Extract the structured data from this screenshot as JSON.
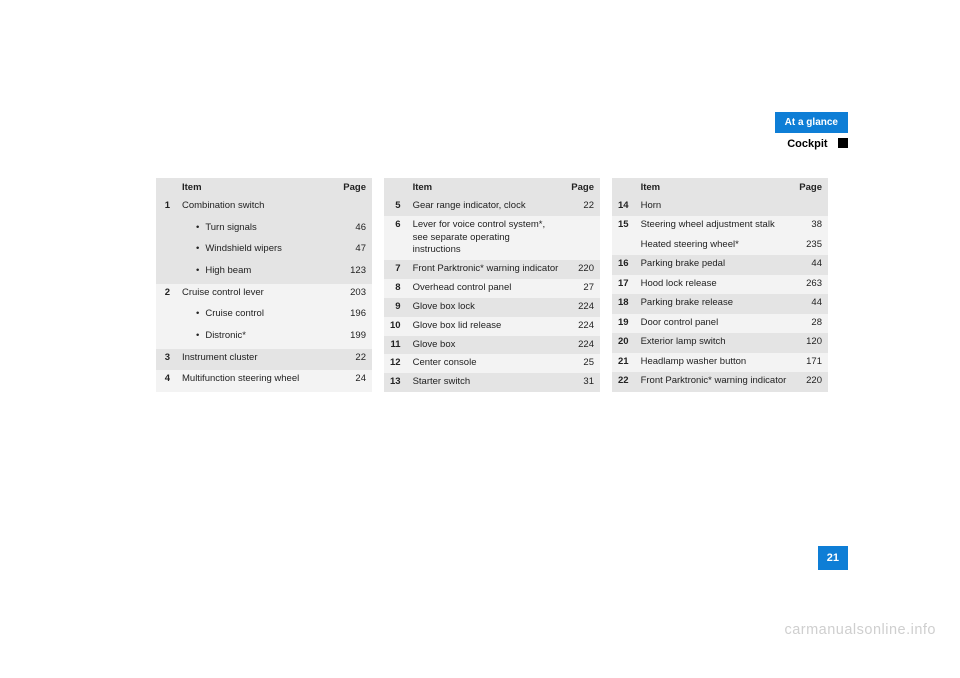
{
  "header": {
    "tab": "At a glance",
    "section": "Cockpit"
  },
  "page_number": "21",
  "watermark": "carmanualsonline.info",
  "columns": [
    {
      "item_h": "Item",
      "page_h": "Page"
    },
    {
      "item_h": "Item",
      "page_h": "Page"
    },
    {
      "item_h": "Item",
      "page_h": "Page"
    }
  ],
  "t1": [
    {
      "num": "1",
      "item": "Combination switch",
      "page": "",
      "stripe": "a",
      "bullet": false
    },
    {
      "num": "",
      "item": "Turn signals",
      "page": "46",
      "stripe": "a",
      "bullet": true
    },
    {
      "num": "",
      "item": "Windshield wipers",
      "page": "47",
      "stripe": "a",
      "bullet": true
    },
    {
      "num": "",
      "item": "High beam",
      "page": "123",
      "stripe": "a",
      "bullet": true
    },
    {
      "num": "2",
      "item": "Cruise control lever",
      "page": "203",
      "stripe": "b",
      "bullet": false
    },
    {
      "num": "",
      "item": "Cruise control",
      "page": "196",
      "stripe": "b",
      "bullet": true
    },
    {
      "num": "",
      "item": "Distronic*",
      "page": "199",
      "stripe": "b",
      "bullet": true
    },
    {
      "num": "3",
      "item": "Instrument cluster",
      "page": "22",
      "stripe": "a",
      "bullet": false
    },
    {
      "num": "4",
      "item": "Multifunction steering wheel",
      "page": "24",
      "stripe": "b",
      "bullet": false
    }
  ],
  "t2": [
    {
      "num": "5",
      "item": "Gear range indicator, clock",
      "page": "22",
      "stripe": "a",
      "bullet": false
    },
    {
      "num": "6",
      "item": "Lever for voice control system*, see separate operating instructions",
      "page": "",
      "stripe": "b",
      "bullet": false
    },
    {
      "num": "7",
      "item": "Front Parktronic* warning indicator",
      "page": "220",
      "stripe": "a",
      "bullet": false
    },
    {
      "num": "8",
      "item": "Overhead control panel",
      "page": "27",
      "stripe": "b",
      "bullet": false
    },
    {
      "num": "9",
      "item": "Glove box lock",
      "page": "224",
      "stripe": "a",
      "bullet": false
    },
    {
      "num": "10",
      "item": "Glove box lid release",
      "page": "224",
      "stripe": "b",
      "bullet": false
    },
    {
      "num": "11",
      "item": "Glove box",
      "page": "224",
      "stripe": "a",
      "bullet": false
    },
    {
      "num": "12",
      "item": "Center console",
      "page": "25",
      "stripe": "b",
      "bullet": false
    },
    {
      "num": "13",
      "item": "Starter switch",
      "page": "31",
      "stripe": "a",
      "bullet": false
    }
  ],
  "t3": [
    {
      "num": "14",
      "item": "Horn",
      "page": "",
      "stripe": "a",
      "bullet": false
    },
    {
      "num": "15",
      "item": "Steering wheel adjustment stalk",
      "page": "38",
      "stripe": "b",
      "bullet": false
    },
    {
      "num": "",
      "item": "Heated steering wheel*",
      "page": "235",
      "stripe": "b",
      "bullet": false
    },
    {
      "num": "16",
      "item": "Parking brake pedal",
      "page": "44",
      "stripe": "a",
      "bullet": false
    },
    {
      "num": "17",
      "item": "Hood lock release",
      "page": "263",
      "stripe": "b",
      "bullet": false
    },
    {
      "num": "18",
      "item": "Parking brake release",
      "page": "44",
      "stripe": "a",
      "bullet": false
    },
    {
      "num": "19",
      "item": "Door control panel",
      "page": "28",
      "stripe": "b",
      "bullet": false
    },
    {
      "num": "20",
      "item": "Exterior lamp switch",
      "page": "120",
      "stripe": "a",
      "bullet": false
    },
    {
      "num": "21",
      "item": "Headlamp washer button",
      "page": "171",
      "stripe": "b",
      "bullet": false
    },
    {
      "num": "22",
      "item": "Front Parktronic* warning indicator",
      "page": "220",
      "stripe": "a",
      "bullet": false
    }
  ]
}
